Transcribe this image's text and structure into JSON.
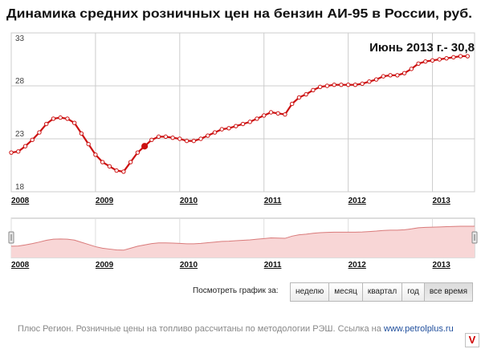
{
  "colors": {
    "line": "#cc1111",
    "marker_fill": "#ffffff",
    "navigator_fill": "#f8d6d6",
    "navigator_line": "#d97a7a",
    "grid": "#cccccc"
  },
  "chart_data": {
    "type": "line",
    "title": "Динамика средних розничных цен на бензин АИ-95 в России, руб.",
    "annotation": "Июнь 2013 г.- 30,8",
    "xlabel": "",
    "ylabel": "",
    "ylim": [
      18,
      33
    ],
    "yticks": [
      33,
      28,
      23,
      18
    ],
    "xlim": [
      "2008-01",
      "2013-07"
    ],
    "xticks": [
      "2008",
      "2009",
      "2010",
      "2011",
      "2012",
      "2013"
    ],
    "grid": true,
    "highlighted_point": "2009-08",
    "series": [
      {
        "x": [
          "2008-01",
          "2008-02",
          "2008-03",
          "2008-04",
          "2008-05",
          "2008-06",
          "2008-07",
          "2008-08",
          "2008-09",
          "2008-10",
          "2008-11",
          "2008-12",
          "2009-01",
          "2009-02",
          "2009-03",
          "2009-04",
          "2009-05",
          "2009-06",
          "2009-07",
          "2009-08",
          "2009-09",
          "2009-10",
          "2009-11",
          "2009-12",
          "2010-01",
          "2010-02",
          "2010-03",
          "2010-04",
          "2010-05",
          "2010-06",
          "2010-07",
          "2010-08",
          "2010-09",
          "2010-10",
          "2010-11",
          "2010-12",
          "2011-01",
          "2011-02",
          "2011-03",
          "2011-04",
          "2011-05",
          "2011-06",
          "2011-07",
          "2011-08",
          "2011-09",
          "2011-10",
          "2011-11",
          "2011-12",
          "2012-01",
          "2012-02",
          "2012-03",
          "2012-04",
          "2012-05",
          "2012-06",
          "2012-07",
          "2012-08",
          "2012-09",
          "2012-10",
          "2012-11",
          "2012-12",
          "2013-01",
          "2013-02",
          "2013-03",
          "2013-04",
          "2013-05",
          "2013-06"
        ],
        "values": [
          21.7,
          21.8,
          22.3,
          22.9,
          23.6,
          24.4,
          24.9,
          25.0,
          24.9,
          24.5,
          23.5,
          22.5,
          21.5,
          20.8,
          20.4,
          20.0,
          19.9,
          20.8,
          21.7,
          22.3,
          22.9,
          23.2,
          23.2,
          23.1,
          23.0,
          22.8,
          22.8,
          23.0,
          23.3,
          23.6,
          23.9,
          24.0,
          24.2,
          24.4,
          24.6,
          24.9,
          25.2,
          25.5,
          25.4,
          25.3,
          26.3,
          26.9,
          27.2,
          27.6,
          27.9,
          28.0,
          28.1,
          28.1,
          28.1,
          28.1,
          28.2,
          28.4,
          28.6,
          28.9,
          29.0,
          29.0,
          29.2,
          29.6,
          30.1,
          30.3,
          30.4,
          30.5,
          30.6,
          30.7,
          30.8,
          30.8
        ]
      }
    ]
  },
  "navigator": {
    "xticks": [
      "2008",
      "2009",
      "2010",
      "2011",
      "2012",
      "2013"
    ]
  },
  "range_selector": {
    "label": "Посмотреть график за:",
    "buttons": [
      {
        "label": "неделю"
      },
      {
        "label": "месяц"
      },
      {
        "label": "квартал"
      },
      {
        "label": "год"
      },
      {
        "label": "все время",
        "active": true
      }
    ]
  },
  "footer": {
    "text": "Плюс Регион. Розничные цены на топливо рассчитаны по методологии РЭШ. Ссылка на",
    "link": "www.petrolplus.ru"
  },
  "corner_logo": {
    "icon": "v-logo-icon",
    "text": "V"
  }
}
